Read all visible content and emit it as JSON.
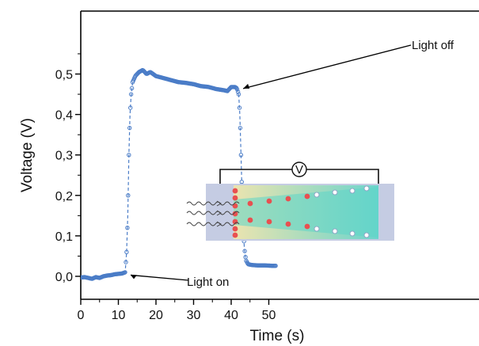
{
  "chart_data": {
    "type": "line",
    "title": "",
    "xlabel": "Time (s)",
    "ylabel": "Voltage (V)",
    "xlim": [
      0,
      52
    ],
    "ylim": [
      -0.05,
      0.56
    ],
    "xticks": [
      0,
      10,
      20,
      30,
      40,
      50
    ],
    "xtick_labels": [
      "0",
      "10",
      "20",
      "30",
      "40",
      "50"
    ],
    "yticks": [
      0.0,
      0.1,
      0.2,
      0.3,
      0.4,
      0.5
    ],
    "ytick_labels": [
      "0,0",
      "0,1",
      "0,2",
      "0,3",
      "0,4",
      "0,5"
    ],
    "grid": false,
    "legend": false,
    "series": [
      {
        "color": "#4a7cc7",
        "style": "dashed line with open circle markers",
        "points": [
          [
            0,
            -0.003
          ],
          [
            1,
            -0.002
          ],
          [
            2,
            -0.004
          ],
          [
            3,
            -0.006
          ],
          [
            4,
            -0.002
          ],
          [
            5,
            -0.004
          ],
          [
            6,
            0.0
          ],
          [
            7,
            0.002
          ],
          [
            8,
            0.003
          ],
          [
            9,
            0.005
          ],
          [
            10,
            0.006
          ],
          [
            11,
            0.007
          ],
          [
            11.8,
            0.01
          ],
          [
            12.2,
            0.06
          ],
          [
            12.5,
            0.15
          ],
          [
            12.8,
            0.3
          ],
          [
            13.1,
            0.4
          ],
          [
            13.4,
            0.45
          ],
          [
            13.8,
            0.48
          ],
          [
            14.5,
            0.495
          ],
          [
            15.5,
            0.505
          ],
          [
            16.5,
            0.51
          ],
          [
            17.5,
            0.5
          ],
          [
            18.5,
            0.505
          ],
          [
            20,
            0.495
          ],
          [
            22,
            0.49
          ],
          [
            24,
            0.485
          ],
          [
            26,
            0.48
          ],
          [
            28,
            0.478
          ],
          [
            30,
            0.475
          ],
          [
            32,
            0.47
          ],
          [
            34,
            0.468
          ],
          [
            36,
            0.463
          ],
          [
            38,
            0.46
          ],
          [
            39,
            0.458
          ],
          [
            40,
            0.468
          ],
          [
            41,
            0.468
          ],
          [
            41.5,
            0.465
          ],
          [
            42,
            0.45
          ],
          [
            42.3,
            0.4
          ],
          [
            42.6,
            0.3
          ],
          [
            42.9,
            0.2
          ],
          [
            43.2,
            0.12
          ],
          [
            43.5,
            0.07
          ],
          [
            43.9,
            0.04
          ],
          [
            44.5,
            0.03
          ],
          [
            45.5,
            0.028
          ],
          [
            47,
            0.027
          ],
          [
            49,
            0.027
          ],
          [
            51,
            0.026
          ],
          [
            52,
            0.026
          ]
        ]
      }
    ],
    "annotations": [
      {
        "text": "Light on",
        "x": 12,
        "y": 0.007
      },
      {
        "text": "Light off",
        "x": 41.5,
        "y": 0.468
      }
    ],
    "inset": {
      "meter_label": "V",
      "colors": {
        "panel": "#c5cce3",
        "gradient_start": "#f2e8a6",
        "gradient_end": "#5cd6c8",
        "positive_charge": "#e85050",
        "negative_charge": "#8fa6c6",
        "light_waves": "#444444"
      }
    }
  }
}
